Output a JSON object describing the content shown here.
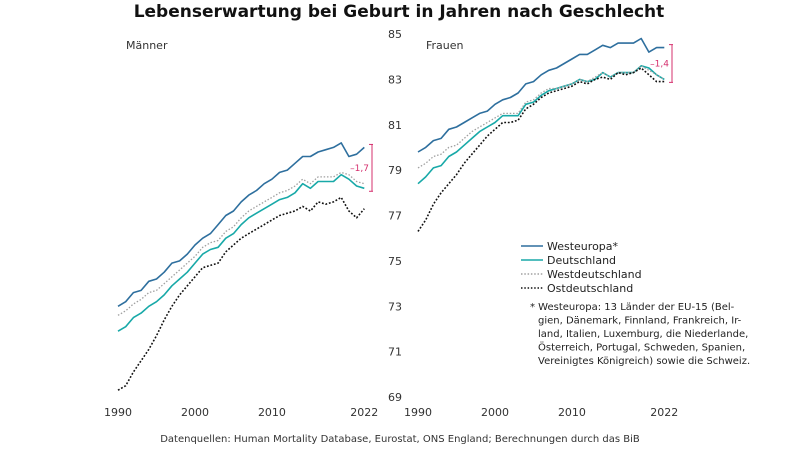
{
  "title": "Lebenserwartung bei Geburt in Jahren nach Geschlecht",
  "source": "Datenquellen: Human Mortality Database, Eurostat, ONS England; Berechnungen durch das BiB",
  "colors": {
    "westeuropa": "#2e6f9e",
    "deutschland": "#18a9a8",
    "westdeutschland": "#a0a0a0",
    "ostdeutschland": "#111111",
    "annotation": "#d5306e"
  },
  "chart_data": [
    {
      "type": "line",
      "panel_label": "Männer",
      "x_ticks": [
        "1990",
        "2000",
        "2010",
        "2022"
      ],
      "x_range": [
        1990,
        2023
      ],
      "ylim": [
        69,
        85
      ],
      "difference_label": "–1,7",
      "difference_between": [
        "Westeuropa",
        "Deutschland"
      ],
      "series": [
        {
          "name": "Westeuropa*",
          "key": "westeuropa",
          "style": "solid",
          "x": [
            1990,
            1991,
            1992,
            1993,
            1994,
            1995,
            1996,
            1997,
            1998,
            1999,
            2000,
            2001,
            2002,
            2003,
            2004,
            2005,
            2006,
            2007,
            2008,
            2009,
            2010,
            2011,
            2012,
            2013,
            2014,
            2015,
            2016,
            2017,
            2018,
            2019,
            2020,
            2021,
            2022
          ],
          "values": [
            73.0,
            73.2,
            73.6,
            73.7,
            74.1,
            74.2,
            74.5,
            74.9,
            75.0,
            75.3,
            75.7,
            76.0,
            76.2,
            76.6,
            77.0,
            77.2,
            77.6,
            77.9,
            78.1,
            78.4,
            78.6,
            78.9,
            79.0,
            79.3,
            79.6,
            79.6,
            79.8,
            79.9,
            80.0,
            80.2,
            79.6,
            79.7,
            80.0
          ]
        },
        {
          "name": "Deutschland",
          "key": "deutschland",
          "style": "solid",
          "x": [
            1990,
            1991,
            1992,
            1993,
            1994,
            1995,
            1996,
            1997,
            1998,
            1999,
            2000,
            2001,
            2002,
            2003,
            2004,
            2005,
            2006,
            2007,
            2008,
            2009,
            2010,
            2011,
            2012,
            2013,
            2014,
            2015,
            2016,
            2017,
            2018,
            2019,
            2020,
            2021,
            2022
          ],
          "values": [
            71.9,
            72.1,
            72.5,
            72.7,
            73.0,
            73.2,
            73.5,
            73.9,
            74.2,
            74.5,
            74.9,
            75.3,
            75.5,
            75.6,
            76.0,
            76.2,
            76.6,
            76.9,
            77.1,
            77.3,
            77.5,
            77.7,
            77.8,
            78.0,
            78.4,
            78.2,
            78.5,
            78.5,
            78.5,
            78.8,
            78.6,
            78.3,
            78.2
          ]
        },
        {
          "name": "Westdeutschland",
          "key": "westdeutschland",
          "style": "dotted",
          "x": [
            1990,
            1991,
            1992,
            1993,
            1994,
            1995,
            1996,
            1997,
            1998,
            1999,
            2000,
            2001,
            2002,
            2003,
            2004,
            2005,
            2006,
            2007,
            2008,
            2009,
            2010,
            2011,
            2012,
            2013,
            2014,
            2015,
            2016,
            2017,
            2018,
            2019,
            2020,
            2021,
            2022
          ],
          "values": [
            72.6,
            72.8,
            73.1,
            73.3,
            73.6,
            73.7,
            74.0,
            74.3,
            74.6,
            74.9,
            75.2,
            75.6,
            75.8,
            75.9,
            76.3,
            76.5,
            76.9,
            77.2,
            77.4,
            77.6,
            77.8,
            78.0,
            78.1,
            78.3,
            78.6,
            78.4,
            78.7,
            78.7,
            78.7,
            78.9,
            78.8,
            78.5,
            78.4
          ]
        },
        {
          "name": "Ostdeutschland",
          "key": "ostdeutschland",
          "style": "dotted",
          "x": [
            1990,
            1991,
            1992,
            1993,
            1994,
            1995,
            1996,
            1997,
            1998,
            1999,
            2000,
            2001,
            2002,
            2003,
            2004,
            2005,
            2006,
            2007,
            2008,
            2009,
            2010,
            2011,
            2012,
            2013,
            2014,
            2015,
            2016,
            2017,
            2018,
            2019,
            2020,
            2021,
            2022
          ],
          "values": [
            69.3,
            69.5,
            70.1,
            70.6,
            71.1,
            71.7,
            72.4,
            73.0,
            73.5,
            73.9,
            74.3,
            74.7,
            74.8,
            74.9,
            75.4,
            75.7,
            76.0,
            76.2,
            76.4,
            76.6,
            76.8,
            77.0,
            77.1,
            77.2,
            77.4,
            77.2,
            77.6,
            77.5,
            77.6,
            77.8,
            77.2,
            76.9,
            77.3
          ]
        }
      ]
    },
    {
      "type": "line",
      "panel_label": "Frauen",
      "x_ticks": [
        "1990",
        "2000",
        "2010",
        "2022"
      ],
      "x_range": [
        1990,
        2023
      ],
      "ylim": [
        69,
        85
      ],
      "y_ticks": [
        "69",
        "71",
        "73",
        "75",
        "77",
        "79",
        "81",
        "83",
        "85"
      ],
      "difference_label": "–1,4",
      "difference_between": [
        "Westeuropa",
        "Deutschland"
      ],
      "series": [
        {
          "name": "Westeuropa*",
          "key": "westeuropa",
          "style": "solid",
          "x": [
            1990,
            1991,
            1992,
            1993,
            1994,
            1995,
            1996,
            1997,
            1998,
            1999,
            2000,
            2001,
            2002,
            2003,
            2004,
            2005,
            2006,
            2007,
            2008,
            2009,
            2010,
            2011,
            2012,
            2013,
            2014,
            2015,
            2016,
            2017,
            2018,
            2019,
            2020,
            2021,
            2022
          ],
          "values": [
            79.8,
            80.0,
            80.3,
            80.4,
            80.8,
            80.9,
            81.1,
            81.3,
            81.5,
            81.6,
            81.9,
            82.1,
            82.2,
            82.4,
            82.8,
            82.9,
            83.2,
            83.4,
            83.5,
            83.7,
            83.9,
            84.1,
            84.1,
            84.3,
            84.5,
            84.4,
            84.6,
            84.6,
            84.6,
            84.8,
            84.2,
            84.4,
            84.4
          ]
        },
        {
          "name": "Deutschland",
          "key": "deutschland",
          "style": "solid",
          "x": [
            1990,
            1991,
            1992,
            1993,
            1994,
            1995,
            1996,
            1997,
            1998,
            1999,
            2000,
            2001,
            2002,
            2003,
            2004,
            2005,
            2006,
            2007,
            2008,
            2009,
            2010,
            2011,
            2012,
            2013,
            2014,
            2015,
            2016,
            2017,
            2018,
            2019,
            2020,
            2021,
            2022
          ],
          "values": [
            78.4,
            78.7,
            79.1,
            79.2,
            79.6,
            79.8,
            80.1,
            80.4,
            80.7,
            80.9,
            81.1,
            81.4,
            81.4,
            81.4,
            81.9,
            82.0,
            82.3,
            82.5,
            82.6,
            82.7,
            82.8,
            83.0,
            82.9,
            83.0,
            83.3,
            83.1,
            83.3,
            83.3,
            83.3,
            83.6,
            83.5,
            83.2,
            83.0
          ]
        },
        {
          "name": "Westdeutschland",
          "key": "westdeutschland",
          "style": "dotted",
          "x": [
            1990,
            1991,
            1992,
            1993,
            1994,
            1995,
            1996,
            1997,
            1998,
            1999,
            2000,
            2001,
            2002,
            2003,
            2004,
            2005,
            2006,
            2007,
            2008,
            2009,
            2010,
            2011,
            2012,
            2013,
            2014,
            2015,
            2016,
            2017,
            2018,
            2019,
            2020,
            2021,
            2022
          ],
          "values": [
            79.1,
            79.3,
            79.6,
            79.7,
            80.0,
            80.1,
            80.4,
            80.7,
            80.9,
            81.1,
            81.3,
            81.5,
            81.5,
            81.5,
            82.0,
            82.1,
            82.4,
            82.6,
            82.6,
            82.7,
            82.8,
            83.0,
            82.9,
            83.1,
            83.3,
            83.1,
            83.3,
            83.3,
            83.3,
            83.6,
            83.4,
            83.2,
            83.0
          ]
        },
        {
          "name": "Ostdeutschland",
          "key": "ostdeutschland",
          "style": "dotted",
          "x": [
            1990,
            1991,
            1992,
            1993,
            1994,
            1995,
            1996,
            1997,
            1998,
            1999,
            2000,
            2001,
            2002,
            2003,
            2004,
            2005,
            2006,
            2007,
            2008,
            2009,
            2010,
            2011,
            2012,
            2013,
            2014,
            2015,
            2016,
            2017,
            2018,
            2019,
            2020,
            2021,
            2022
          ],
          "values": [
            76.3,
            76.8,
            77.5,
            78.0,
            78.4,
            78.8,
            79.3,
            79.7,
            80.1,
            80.5,
            80.8,
            81.1,
            81.1,
            81.2,
            81.7,
            81.9,
            82.2,
            82.4,
            82.5,
            82.6,
            82.7,
            82.9,
            82.8,
            83.0,
            83.1,
            83.0,
            83.3,
            83.2,
            83.3,
            83.5,
            83.2,
            82.9,
            82.9
          ]
        }
      ]
    }
  ],
  "legend": [
    {
      "label": "Westeuropa*",
      "key": "westeuropa",
      "style": "solid"
    },
    {
      "label": "Deutschland",
      "key": "deutschland",
      "style": "solid"
    },
    {
      "label": "Westdeutschland",
      "key": "westdeutschland",
      "style": "dotted"
    },
    {
      "label": "Ostdeutschland",
      "key": "ostdeutschland",
      "style": "dotted"
    }
  ],
  "note_lines": [
    "* Westeuropa: 13 Länder der EU-15 (Bel-",
    "gien, Dänemark, Finnland, Frankreich, Ir-",
    "land, Italien, Luxemburg, die Niederlande,",
    "Österreich, Portugal, Schweden, Spanien,",
    "Vereinigtes Königreich) sowie die Schweiz."
  ]
}
